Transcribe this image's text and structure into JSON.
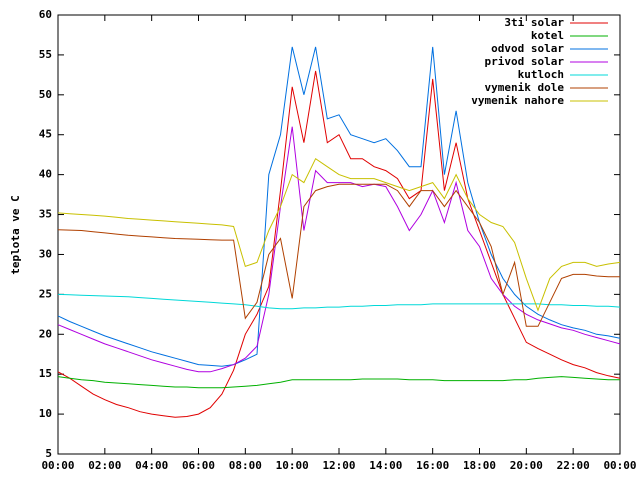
{
  "chart_data": {
    "type": "line",
    "ylabel": "teplota ve C",
    "x": [
      0,
      0.5,
      1,
      1.5,
      2,
      2.5,
      3,
      3.5,
      4,
      4.5,
      5,
      5.5,
      6,
      6.5,
      7,
      7.5,
      8,
      8.5,
      9,
      9.5,
      10,
      10.5,
      11,
      11.5,
      12,
      12.5,
      13,
      13.5,
      14,
      14.5,
      15,
      15.5,
      16,
      16.5,
      17,
      17.5,
      18,
      18.5,
      19,
      19.5,
      20,
      20.5,
      21,
      21.5,
      22,
      22.5,
      23,
      23.5,
      24
    ],
    "xlim": [
      0,
      24
    ],
    "xticks": [
      {
        "value": 0,
        "label": "00:00"
      },
      {
        "value": 2,
        "label": "02:00"
      },
      {
        "value": 4,
        "label": "04:00"
      },
      {
        "value": 6,
        "label": "06:00"
      },
      {
        "value": 8,
        "label": "08:00"
      },
      {
        "value": 10,
        "label": "10:00"
      },
      {
        "value": 12,
        "label": "12:00"
      },
      {
        "value": 14,
        "label": "14:00"
      },
      {
        "value": 16,
        "label": "16:00"
      },
      {
        "value": 18,
        "label": "18:00"
      },
      {
        "value": 20,
        "label": "20:00"
      },
      {
        "value": 22,
        "label": "22:00"
      },
      {
        "value": 24,
        "label": "00:00"
      }
    ],
    "ylim": [
      5,
      60
    ],
    "yticks": [
      5,
      10,
      15,
      20,
      25,
      30,
      35,
      40,
      45,
      50,
      55,
      60
    ],
    "legend": "top-right",
    "series": [
      {
        "name": "3ti solar",
        "color": "#e00000",
        "values": [
          15.3,
          14.5,
          13.5,
          12.5,
          11.8,
          11.2,
          10.8,
          10.3,
          10,
          9.8,
          9.6,
          9.7,
          10,
          10.8,
          12.5,
          15.5,
          20,
          22.5,
          26,
          38,
          51,
          44,
          53,
          44,
          45,
          42,
          42,
          41,
          40.5,
          39.5,
          37,
          38,
          52,
          38,
          44,
          37,
          33,
          29,
          25,
          22,
          19,
          18.2,
          17.5,
          16.8,
          16.2,
          15.8,
          15.2,
          14.8,
          14.5
        ]
      },
      {
        "name": "kotel",
        "color": "#00b000",
        "values": [
          14.7,
          14.5,
          14.3,
          14.2,
          14.0,
          13.9,
          13.8,
          13.7,
          13.6,
          13.5,
          13.4,
          13.4,
          13.3,
          13.3,
          13.3,
          13.4,
          13.5,
          13.6,
          13.8,
          14.0,
          14.3,
          14.3,
          14.3,
          14.3,
          14.3,
          14.3,
          14.4,
          14.4,
          14.4,
          14.4,
          14.3,
          14.3,
          14.3,
          14.2,
          14.2,
          14.2,
          14.2,
          14.2,
          14.2,
          14.3,
          14.3,
          14.5,
          14.6,
          14.7,
          14.6,
          14.5,
          14.4,
          14.3,
          14.3
        ]
      },
      {
        "name": "odvod solar",
        "color": "#0070e0",
        "values": [
          22.3,
          21.6,
          21,
          20.4,
          19.8,
          19.3,
          18.8,
          18.3,
          17.8,
          17.4,
          17,
          16.6,
          16.2,
          16.1,
          16,
          16.2,
          16.8,
          17.5,
          40,
          45,
          56,
          50,
          56,
          47,
          47.5,
          45,
          44.5,
          44,
          44.5,
          43,
          41,
          41,
          56,
          40,
          48,
          39,
          34,
          30,
          27,
          25,
          23.5,
          22.5,
          21.8,
          21.2,
          20.8,
          20.5,
          20,
          19.8,
          19.5
        ]
      },
      {
        "name": "privod solar",
        "color": "#b000e0",
        "values": [
          21.2,
          20.6,
          20,
          19.4,
          18.8,
          18.3,
          17.8,
          17.3,
          16.8,
          16.4,
          16,
          15.6,
          15.3,
          15.3,
          15.7,
          16.2,
          17,
          18.5,
          25,
          36,
          46,
          33,
          40.5,
          39,
          39,
          39,
          38.5,
          38.8,
          38.5,
          36,
          33,
          35,
          38,
          34,
          39,
          33,
          31,
          27,
          25,
          23.5,
          22.5,
          21.8,
          21.3,
          20.8,
          20.5,
          20,
          19.6,
          19.2,
          18.8
        ]
      },
      {
        "name": "kutloch",
        "color": "#00d8d8",
        "values": [
          25.0,
          24.95,
          24.9,
          24.85,
          24.8,
          24.75,
          24.7,
          24.6,
          24.5,
          24.4,
          24.3,
          24.2,
          24.1,
          24.0,
          23.9,
          23.8,
          23.7,
          23.5,
          23.3,
          23.2,
          23.2,
          23.3,
          23.3,
          23.4,
          23.4,
          23.5,
          23.5,
          23.6,
          23.6,
          23.7,
          23.7,
          23.7,
          23.8,
          23.8,
          23.8,
          23.8,
          23.8,
          23.8,
          23.8,
          23.8,
          23.8,
          23.8,
          23.7,
          23.7,
          23.6,
          23.6,
          23.5,
          23.5,
          23.4
        ]
      },
      {
        "name": "vymenik dole",
        "color": "#b04000",
        "values": [
          33.1,
          33.05,
          33,
          32.85,
          32.7,
          32.55,
          32.4,
          32.3,
          32.2,
          32.1,
          32,
          31.95,
          31.9,
          31.85,
          31.8,
          31.8,
          22,
          24,
          30,
          32,
          24.5,
          36,
          38,
          38.5,
          38.8,
          38.8,
          38.8,
          38.8,
          38.8,
          38,
          36,
          38,
          38,
          36,
          38,
          36,
          34,
          31,
          25,
          29,
          21,
          21,
          24,
          27,
          27.5,
          27.5,
          27.3,
          27.2,
          27.2
        ]
      },
      {
        "name": "vymenik nahore",
        "color": "#c8c000",
        "values": [
          35.2,
          35.1,
          35,
          34.9,
          34.8,
          34.65,
          34.5,
          34.4,
          34.3,
          34.2,
          34.1,
          34,
          33.9,
          33.8,
          33.7,
          33.5,
          28.5,
          29,
          33,
          36,
          40,
          39,
          42,
          41,
          40,
          39.5,
          39.5,
          39.5,
          39,
          38.5,
          38,
          38.5,
          39,
          37,
          40,
          37,
          35,
          34,
          33.5,
          31.5,
          27,
          23,
          27,
          28.5,
          29,
          29,
          28.5,
          28.8,
          29
        ]
      }
    ]
  }
}
